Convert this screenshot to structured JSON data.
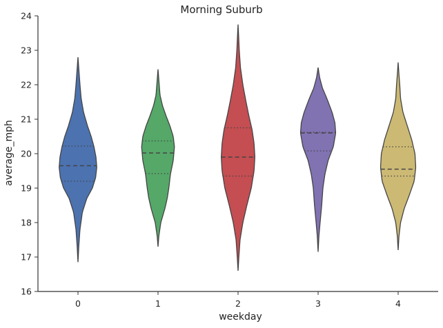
{
  "chart_data": {
    "type": "violin",
    "title": "Morning Suburb",
    "xlabel": "weekday",
    "ylabel": "average_mph",
    "categories": [
      "0",
      "1",
      "2",
      "3",
      "4"
    ],
    "ylim": [
      16,
      24
    ],
    "yticks": [
      "16",
      "17",
      "18",
      "19",
      "20",
      "21",
      "22",
      "23",
      "24"
    ],
    "grid": false,
    "violins": [
      {
        "category": "0",
        "color": "#4c72b0",
        "min": 16.85,
        "max": 22.8,
        "q1": 19.2,
        "median": 19.65,
        "q3": 20.22,
        "widths": [
          [
            16.85,
            0.0
          ],
          [
            17.3,
            0.02
          ],
          [
            17.8,
            0.05
          ],
          [
            18.3,
            0.11
          ],
          [
            18.7,
            0.22
          ],
          [
            19.0,
            0.36
          ],
          [
            19.3,
            0.44
          ],
          [
            19.6,
            0.47
          ],
          [
            19.9,
            0.45
          ],
          [
            20.2,
            0.4
          ],
          [
            20.5,
            0.33
          ],
          [
            20.8,
            0.24
          ],
          [
            21.2,
            0.14
          ],
          [
            21.6,
            0.08
          ],
          [
            22.0,
            0.05
          ],
          [
            22.4,
            0.025
          ],
          [
            22.8,
            0.0
          ]
        ]
      },
      {
        "category": "1",
        "color": "#55a868",
        "min": 17.3,
        "max": 22.45,
        "q1": 19.42,
        "median": 20.02,
        "q3": 20.37,
        "widths": [
          [
            17.3,
            0.0
          ],
          [
            17.6,
            0.02
          ],
          [
            18.0,
            0.07
          ],
          [
            18.4,
            0.17
          ],
          [
            18.7,
            0.23
          ],
          [
            19.0,
            0.27
          ],
          [
            19.4,
            0.31
          ],
          [
            19.8,
            0.38
          ],
          [
            20.2,
            0.41
          ],
          [
            20.5,
            0.38
          ],
          [
            20.8,
            0.3
          ],
          [
            21.1,
            0.2
          ],
          [
            21.4,
            0.11
          ],
          [
            21.7,
            0.05
          ],
          [
            22.0,
            0.03
          ],
          [
            22.45,
            0.0
          ]
        ]
      },
      {
        "category": "2",
        "color": "#c44e52",
        "min": 16.6,
        "max": 23.75,
        "q1": 19.35,
        "median": 19.9,
        "q3": 20.75,
        "widths": [
          [
            16.6,
            0.0
          ],
          [
            17.0,
            0.02
          ],
          [
            17.5,
            0.05
          ],
          [
            18.0,
            0.12
          ],
          [
            18.5,
            0.22
          ],
          [
            19.0,
            0.33
          ],
          [
            19.5,
            0.4
          ],
          [
            19.9,
            0.42
          ],
          [
            20.3,
            0.4
          ],
          [
            20.7,
            0.35
          ],
          [
            21.1,
            0.27
          ],
          [
            21.5,
            0.2
          ],
          [
            22.0,
            0.12
          ],
          [
            22.5,
            0.06
          ],
          [
            23.0,
            0.03
          ],
          [
            23.4,
            0.015
          ],
          [
            23.75,
            0.0
          ]
        ]
      },
      {
        "category": "3",
        "color": "#8172b2",
        "min": 17.15,
        "max": 22.5,
        "q1": 20.08,
        "median": 20.6,
        "q3": 20.62,
        "widths": [
          [
            17.15,
            0.0
          ],
          [
            17.6,
            0.02
          ],
          [
            18.0,
            0.05
          ],
          [
            18.5,
            0.09
          ],
          [
            19.0,
            0.12
          ],
          [
            19.4,
            0.17
          ],
          [
            19.8,
            0.25
          ],
          [
            20.2,
            0.38
          ],
          [
            20.6,
            0.44
          ],
          [
            20.9,
            0.42
          ],
          [
            21.2,
            0.35
          ],
          [
            21.6,
            0.22
          ],
          [
            21.9,
            0.11
          ],
          [
            22.2,
            0.04
          ],
          [
            22.5,
            0.0
          ]
        ]
      },
      {
        "category": "4",
        "color": "#ccb974",
        "min": 17.2,
        "max": 22.65,
        "q1": 19.35,
        "median": 19.55,
        "q3": 20.2,
        "widths": [
          [
            17.2,
            0.0
          ],
          [
            17.6,
            0.02
          ],
          [
            18.0,
            0.06
          ],
          [
            18.4,
            0.15
          ],
          [
            18.8,
            0.28
          ],
          [
            19.2,
            0.4
          ],
          [
            19.6,
            0.44
          ],
          [
            20.0,
            0.42
          ],
          [
            20.4,
            0.34
          ],
          [
            20.8,
            0.23
          ],
          [
            21.2,
            0.12
          ],
          [
            21.6,
            0.06
          ],
          [
            22.0,
            0.04
          ],
          [
            22.3,
            0.02
          ],
          [
            22.65,
            0.0
          ]
        ]
      }
    ]
  }
}
